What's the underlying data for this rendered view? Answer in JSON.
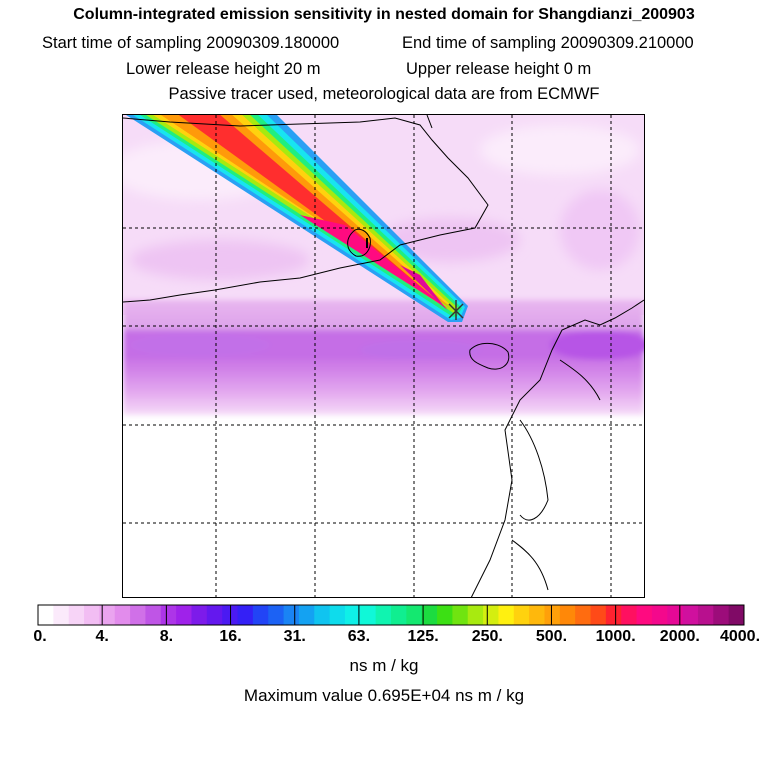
{
  "title": {
    "line1": "Column-integrated emission sensitivity in nested domain for Shangdianzi_200903",
    "start_label": "Start time of sampling 20090309.180000",
    "end_label": "End time of sampling 20090309.210000",
    "lower_label": "Lower release height   20 m",
    "upper_label": "Upper release height    0 m",
    "line4": "Passive tracer used, meteorological data are from ECMWF"
  },
  "map": {
    "station": "Shangdianzi",
    "source_marker": "x-marker-icon"
  },
  "colorbar": {
    "tick_labels": [
      "0.",
      "4.",
      "8.",
      "16.",
      "31.",
      "63.",
      "125.",
      "250.",
      "500.",
      "1000.",
      "2000.",
      "4000."
    ],
    "colors": [
      "#ffffff",
      "#fbeafb",
      "#f7d4f7",
      "#f2bdf3",
      "#eaa4ef",
      "#e28cec",
      "#d070e8",
      "#bf55e6",
      "#ad35e8",
      "#9f22ea",
      "#7d1bea",
      "#6418ee",
      "#4b1af2",
      "#3420f6",
      "#2244f6",
      "#1c62f4",
      "#1a84f4",
      "#14a2f2",
      "#10c4f0",
      "#0edcec",
      "#0ff0e8",
      "#10f8d8",
      "#10f4b0",
      "#10ee90",
      "#14e870",
      "#1cdc40",
      "#3ce014",
      "#70e410",
      "#a8ea10",
      "#d4ee10",
      "#fff010",
      "#ffd20e",
      "#ffb80c",
      "#ffa00a",
      "#ff8808",
      "#ff6c10",
      "#ff4a18",
      "#ff2230",
      "#ff1060",
      "#ff0a80",
      "#f4088c",
      "#e60896",
      "#d0109e",
      "#b8108e",
      "#9c0c7a",
      "#800a66"
    ]
  },
  "units_label": "ns m / kg",
  "max_label": "Maximum value  0.695E+04 ns m / kg"
}
